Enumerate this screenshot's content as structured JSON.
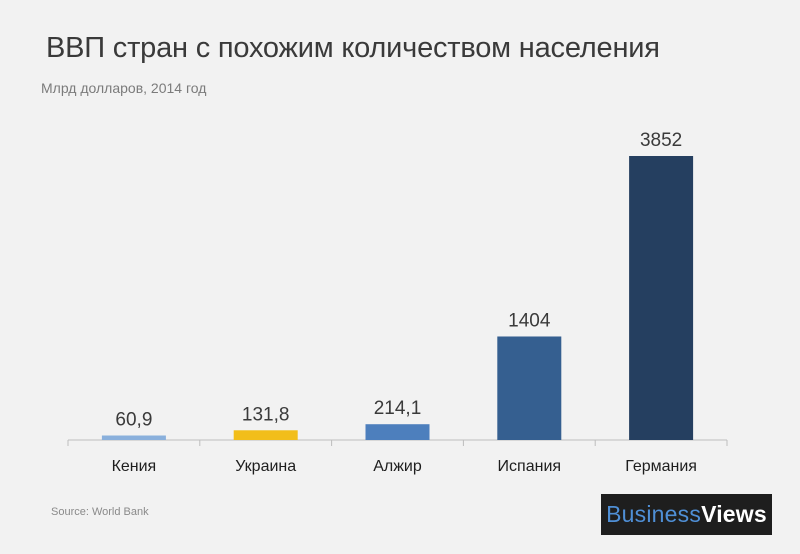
{
  "chart_data": {
    "type": "bar",
    "title": "ВВП стран с похожим количеством населения",
    "subtitle": "Млрд долларов, 2014 год",
    "categories": [
      "Кения",
      "Украина",
      "Алжир",
      "Испания",
      "Германия"
    ],
    "values": [
      60.9,
      131.8,
      214.1,
      1404,
      3852
    ],
    "value_labels": [
      "60,9",
      "131,8",
      "214,1",
      "1404",
      "3852"
    ],
    "colors": [
      "#8ab0dc",
      "#f2be1a",
      "#4d7fbd",
      "#355f90",
      "#253f60"
    ],
    "ylim": [
      0,
      3852
    ],
    "grid": false,
    "legend": "none"
  },
  "footer": {
    "source": "Source: World Bank",
    "logo_part1": "Business",
    "logo_part2": "Views"
  }
}
